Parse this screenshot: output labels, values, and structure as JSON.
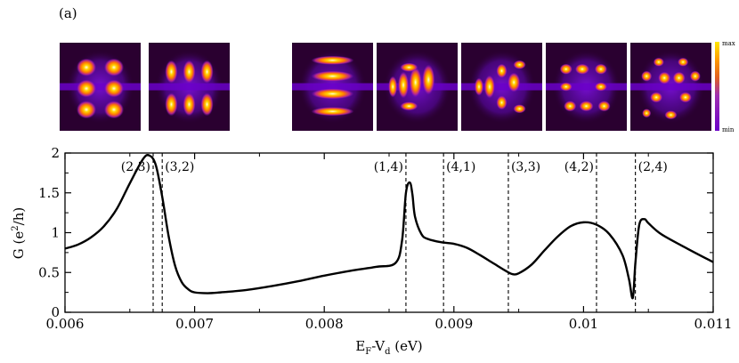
{
  "panel_label": "(a)",
  "colorbar": {
    "max_label": "max",
    "min_label": "min",
    "colors": [
      "#2a0030",
      "#6a00c8",
      "#b030e0",
      "#e06020",
      "#ff9000",
      "#ffe200",
      "#fffff0"
    ]
  },
  "density_maps": [
    {
      "name": "mode-2-3",
      "mode": "(2,3)"
    },
    {
      "name": "mode-3-2",
      "mode": "(3,2)"
    },
    {
      "name": "mode-1-4",
      "mode": "(1,4)"
    },
    {
      "name": "mode-4-1",
      "mode": "(4,1)"
    },
    {
      "name": "mode-3-3",
      "mode": "(3,3)"
    },
    {
      "name": "mode-4-2",
      "mode": "(4,2)"
    },
    {
      "name": "mode-2-4",
      "mode": "(2,4)"
    }
  ],
  "chart_data": {
    "type": "line",
    "xlabel": "E_F-V_d (eV)",
    "ylabel": "G (e^2/h)",
    "xlim": [
      0.006,
      0.011
    ],
    "ylim": [
      0,
      2
    ],
    "xticks": [
      0.006,
      0.007,
      0.008,
      0.009,
      0.01,
      0.011
    ],
    "xtick_labels": [
      "0.006",
      "0.007",
      "0.008",
      "0.009",
      "0.01",
      "0.011"
    ],
    "yticks": [
      0,
      0.5,
      1,
      1.5,
      2
    ],
    "ytick_labels": [
      "0",
      "0.5",
      "1",
      "1.5",
      "2"
    ],
    "series": [
      {
        "name": "G",
        "color": "#000000",
        "x": [
          0.006,
          0.0061,
          0.0062,
          0.0063,
          0.0064,
          0.0065,
          0.0066,
          0.00665,
          0.0067,
          0.00675,
          0.0068,
          0.00685,
          0.0069,
          0.00695,
          0.007,
          0.0071,
          0.0072,
          0.0074,
          0.0076,
          0.0078,
          0.008,
          0.0082,
          0.0084,
          0.00855,
          0.0086,
          0.00863,
          0.00866,
          0.00868,
          0.0087,
          0.00875,
          0.0088,
          0.0089,
          0.009,
          0.0091,
          0.0092,
          0.0093,
          0.0094,
          0.00945,
          0.0095,
          0.0096,
          0.0097,
          0.0098,
          0.0099,
          0.01,
          0.0101,
          0.0102,
          0.0103,
          0.01035,
          0.01038,
          0.0104,
          0.01043,
          0.01047,
          0.0105,
          0.0106,
          0.0108,
          0.011
        ],
        "y": [
          0.8,
          0.85,
          0.94,
          1.08,
          1.3,
          1.62,
          1.92,
          1.97,
          1.85,
          1.45,
          0.95,
          0.58,
          0.38,
          0.29,
          0.25,
          0.24,
          0.25,
          0.28,
          0.33,
          0.39,
          0.46,
          0.52,
          0.57,
          0.62,
          0.9,
          1.5,
          1.63,
          1.48,
          1.2,
          0.98,
          0.92,
          0.88,
          0.86,
          0.81,
          0.72,
          0.62,
          0.52,
          0.48,
          0.49,
          0.6,
          0.78,
          0.95,
          1.08,
          1.13,
          1.1,
          0.98,
          0.72,
          0.42,
          0.18,
          0.62,
          1.1,
          1.17,
          1.12,
          0.98,
          0.8,
          0.63
        ]
      }
    ],
    "vlines": [
      {
        "x": 0.00668,
        "label": "(2,3)",
        "label_side": "left"
      },
      {
        "x": 0.00675,
        "label": "(3,2)",
        "label_side": "right"
      },
      {
        "x": 0.00863,
        "label": "(1,4)",
        "label_side": "left"
      },
      {
        "x": 0.00892,
        "label": "(4,1)",
        "label_side": "right"
      },
      {
        "x": 0.00942,
        "label": "(3,3)",
        "label_side": "right"
      },
      {
        "x": 0.0101,
        "label": "(4,2)",
        "label_side": "left"
      },
      {
        "x": 0.0104,
        "label": "(2,4)",
        "label_side": "right"
      }
    ]
  }
}
